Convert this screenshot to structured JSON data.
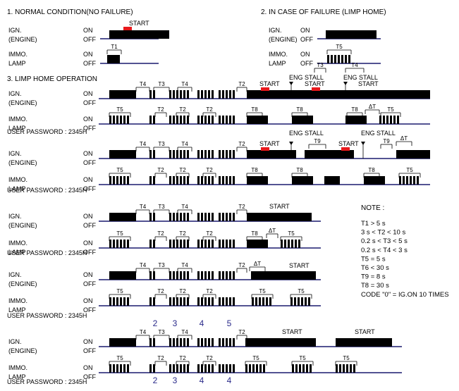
{
  "sections": {
    "normal": "1. NORMAL CONDITION(NO FAILURE)",
    "failure": "2. IN CASE OF FAILURE (LIMP HOME)",
    "limp": "3. LIMP HOME OPERATION"
  },
  "labels": {
    "ign": "IGN.",
    "engine": "(ENGINE)",
    "immo": "IMMO.",
    "lamp": "LAMP",
    "on": "ON",
    "off": "OFF",
    "start": "START",
    "eng_stall": "ENG STALL",
    "password": "USER PASSWORD : 2345H"
  },
  "timing": {
    "T1": "T1",
    "T2": "T2",
    "T3": "T3",
    "T4": "T4",
    "T5": "T5",
    "T8": "T8",
    "T9": "T9",
    "dT": "ΔT"
  },
  "digits": {
    "d2": "2",
    "d3": "3",
    "d4": "4",
    "d5": "5"
  },
  "note": {
    "title": "NOTE :",
    "lines": [
      "T1 > 5 s",
      "3 s < T2 < 10 s",
      "0.2 s < T3 < 5  s",
      "0.2 s < T4 < 3 s",
      "T5 = 5 s",
      "T6 < 30 s",
      "T9 = 8 s",
      "T8 = 30 s",
      "CODE \"0\" = IG.ON 10 TIMES"
    ]
  },
  "colors": {
    "wave": "#000000",
    "axis": "#1a1a6e",
    "start_marker": "#e8191c",
    "digit": "#2a2a8a"
  }
}
